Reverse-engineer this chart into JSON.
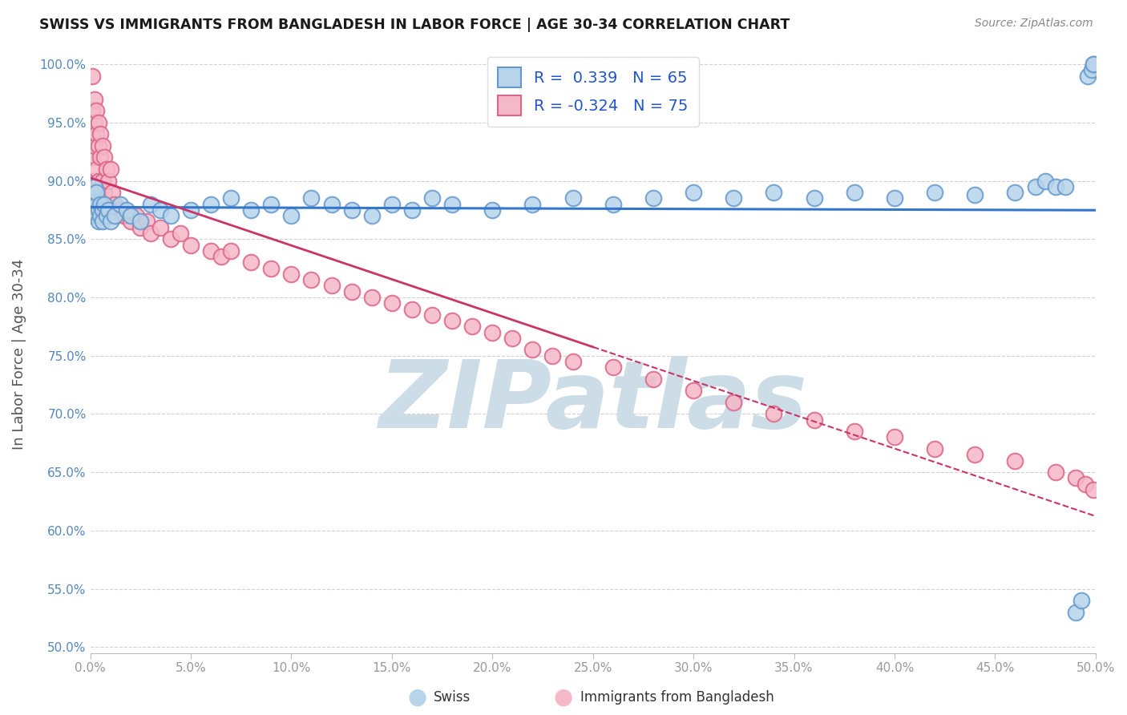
{
  "title": "SWISS VS IMMIGRANTS FROM BANGLADESH IN LABOR FORCE | AGE 30-34 CORRELATION CHART",
  "source": "Source: ZipAtlas.com",
  "ylabel": "In Labor Force | Age 30-34",
  "xlim": [
    0.0,
    0.5
  ],
  "ylim": [
    0.495,
    1.008
  ],
  "xtick_vals": [
    0.0,
    0.05,
    0.1,
    0.15,
    0.2,
    0.25,
    0.3,
    0.35,
    0.4,
    0.45,
    0.5
  ],
  "ytick_vals": [
    0.5,
    0.55,
    0.6,
    0.65,
    0.7,
    0.75,
    0.8,
    0.85,
    0.9,
    0.95,
    1.0
  ],
  "ytick_labels": [
    "50.0%",
    "55.0%",
    "60.0%",
    "65.0%",
    "70.0%",
    "75.0%",
    "80.0%",
    "85.0%",
    "90.0%",
    "95.0%",
    "100.0%"
  ],
  "xtick_labels": [
    "0.0%",
    "5.0%",
    "10.0%",
    "15.0%",
    "20.0%",
    "25.0%",
    "30.0%",
    "35.0%",
    "40.0%",
    "45.0%",
    "50.0%"
  ],
  "R_swiss": 0.339,
  "N_swiss": 65,
  "R_bangladesh": -0.324,
  "N_bangladesh": 75,
  "swiss_face": "#b8d4ea",
  "swiss_edge": "#6699cc",
  "bangladesh_face": "#f5b8c8",
  "bangladesh_edge": "#dd6688",
  "line_swiss_color": "#3377cc",
  "line_bgd_color": "#cc3366",
  "watermark_color": "#ccdde8",
  "legend_swiss": "Swiss",
  "legend_bgd": "Immigrants from Bangladesh",
  "swiss_x": [
    0.001,
    0.001,
    0.001,
    0.002,
    0.002,
    0.002,
    0.003,
    0.003,
    0.003,
    0.004,
    0.004,
    0.005,
    0.005,
    0.006,
    0.006,
    0.007,
    0.008,
    0.009,
    0.01,
    0.012,
    0.015,
    0.018,
    0.02,
    0.025,
    0.03,
    0.035,
    0.04,
    0.05,
    0.06,
    0.07,
    0.08,
    0.09,
    0.1,
    0.11,
    0.12,
    0.13,
    0.14,
    0.15,
    0.16,
    0.17,
    0.18,
    0.2,
    0.22,
    0.24,
    0.26,
    0.28,
    0.3,
    0.32,
    0.34,
    0.36,
    0.38,
    0.4,
    0.42,
    0.44,
    0.46,
    0.47,
    0.475,
    0.48,
    0.485,
    0.49,
    0.493,
    0.496,
    0.498,
    0.499,
    0.499
  ],
  "swiss_y": [
    0.87,
    0.88,
    0.89,
    0.875,
    0.885,
    0.895,
    0.87,
    0.88,
    0.89,
    0.875,
    0.865,
    0.88,
    0.87,
    0.875,
    0.865,
    0.88,
    0.87,
    0.875,
    0.865,
    0.87,
    0.88,
    0.875,
    0.87,
    0.865,
    0.88,
    0.875,
    0.87,
    0.875,
    0.88,
    0.885,
    0.875,
    0.88,
    0.87,
    0.885,
    0.88,
    0.875,
    0.87,
    0.88,
    0.875,
    0.885,
    0.88,
    0.875,
    0.88,
    0.885,
    0.88,
    0.885,
    0.89,
    0.885,
    0.89,
    0.885,
    0.89,
    0.885,
    0.89,
    0.888,
    0.89,
    0.895,
    0.9,
    0.895,
    0.895,
    0.53,
    0.54,
    0.99,
    0.995,
    1.0,
    1.0
  ],
  "bangladesh_x": [
    0.001,
    0.001,
    0.001,
    0.001,
    0.002,
    0.002,
    0.002,
    0.002,
    0.003,
    0.003,
    0.003,
    0.004,
    0.004,
    0.004,
    0.005,
    0.005,
    0.005,
    0.006,
    0.006,
    0.007,
    0.007,
    0.008,
    0.008,
    0.009,
    0.01,
    0.01,
    0.011,
    0.012,
    0.013,
    0.015,
    0.017,
    0.02,
    0.023,
    0.025,
    0.028,
    0.03,
    0.035,
    0.04,
    0.045,
    0.05,
    0.06,
    0.065,
    0.07,
    0.08,
    0.09,
    0.1,
    0.11,
    0.12,
    0.13,
    0.14,
    0.15,
    0.16,
    0.17,
    0.18,
    0.19,
    0.2,
    0.21,
    0.22,
    0.23,
    0.24,
    0.26,
    0.28,
    0.3,
    0.32,
    0.34,
    0.36,
    0.38,
    0.4,
    0.42,
    0.44,
    0.46,
    0.48,
    0.49,
    0.495,
    0.499
  ],
  "bangladesh_y": [
    0.99,
    0.96,
    0.94,
    0.92,
    0.97,
    0.95,
    0.93,
    0.9,
    0.96,
    0.94,
    0.91,
    0.95,
    0.93,
    0.9,
    0.94,
    0.92,
    0.89,
    0.93,
    0.9,
    0.92,
    0.89,
    0.91,
    0.88,
    0.9,
    0.91,
    0.88,
    0.89,
    0.88,
    0.87,
    0.875,
    0.87,
    0.865,
    0.87,
    0.86,
    0.865,
    0.855,
    0.86,
    0.85,
    0.855,
    0.845,
    0.84,
    0.835,
    0.84,
    0.83,
    0.825,
    0.82,
    0.815,
    0.81,
    0.805,
    0.8,
    0.795,
    0.79,
    0.785,
    0.78,
    0.775,
    0.77,
    0.765,
    0.755,
    0.75,
    0.745,
    0.74,
    0.73,
    0.72,
    0.71,
    0.7,
    0.695,
    0.685,
    0.68,
    0.67,
    0.665,
    0.66,
    0.65,
    0.645,
    0.64,
    0.635
  ]
}
